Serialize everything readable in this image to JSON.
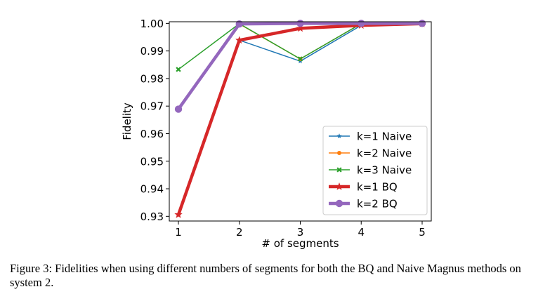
{
  "chart_data": {
    "type": "line",
    "xlabel": "# of segments",
    "ylabel": "Fidelity",
    "xlim": [
      0.85,
      5.15
    ],
    "ylim": [
      0.9283,
      1.0006
    ],
    "xticks": [
      1,
      2,
      3,
      4,
      5
    ],
    "yticks": [
      0.93,
      0.94,
      0.95,
      0.96,
      0.97,
      0.98,
      0.99,
      1.0
    ],
    "ytick_labels": [
      "0.93",
      "0.94",
      "0.95",
      "0.96",
      "0.97",
      "0.98",
      "0.99",
      "1.00"
    ],
    "legend_position": "center-right",
    "series": [
      {
        "name": "k=1 Naive",
        "color": "#1f77b4",
        "marker": "star",
        "width": "thin",
        "x": [
          2,
          3,
          4,
          5
        ],
        "y": [
          0.9939,
          0.9863,
          0.9993,
          0.9999
        ]
      },
      {
        "name": "k=2 Naive",
        "color": "#ff7f0e",
        "marker": "circle",
        "width": "thin",
        "x": [
          2,
          3,
          4,
          5
        ],
        "y": [
          0.9998,
          0.9871,
          0.9999,
          1.0
        ]
      },
      {
        "name": "k=3 Naive",
        "color": "#2ca02c",
        "marker": "x",
        "width": "thin",
        "x": [
          1,
          2,
          3,
          4,
          5
        ],
        "y": [
          0.9833,
          0.9999,
          0.9871,
          0.9999,
          1.0
        ]
      },
      {
        "name": "k=1 BQ",
        "color": "#d62728",
        "marker": "star",
        "width": "thick",
        "x": [
          1,
          2,
          3,
          4,
          5
        ],
        "y": [
          0.9306,
          0.9939,
          0.9982,
          0.9993,
          0.9999
        ]
      },
      {
        "name": "k=2 BQ",
        "color": "#9467bd",
        "marker": "circle",
        "width": "thick",
        "x": [
          1,
          2,
          3,
          4,
          5
        ],
        "y": [
          0.9689,
          0.9998,
          1.0,
          1.0,
          1.0
        ]
      }
    ]
  },
  "caption": "Figure 3: Fidelities when using different numbers of segments for both the BQ and Naive Magnus methods on system 2."
}
